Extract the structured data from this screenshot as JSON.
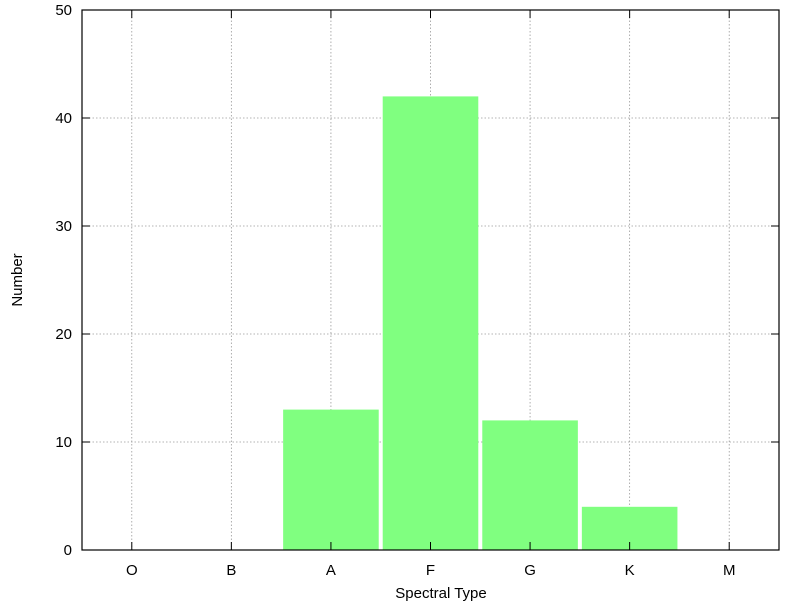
{
  "chart_data": {
    "type": "bar",
    "categories": [
      "O",
      "B",
      "A",
      "F",
      "G",
      "K",
      "M"
    ],
    "values": [
      0,
      0,
      13,
      42,
      12,
      4,
      0
    ],
    "title": "",
    "xlabel": "Spectral Type",
    "ylabel": "Number",
    "ylim": [
      0,
      50
    ],
    "yticks": [
      0,
      10,
      20,
      30,
      40,
      50
    ],
    "grid": true,
    "legend": "none",
    "colors": {
      "bar": "#80ff80",
      "grid": "#9a9a9a",
      "axis": "#000000"
    }
  }
}
